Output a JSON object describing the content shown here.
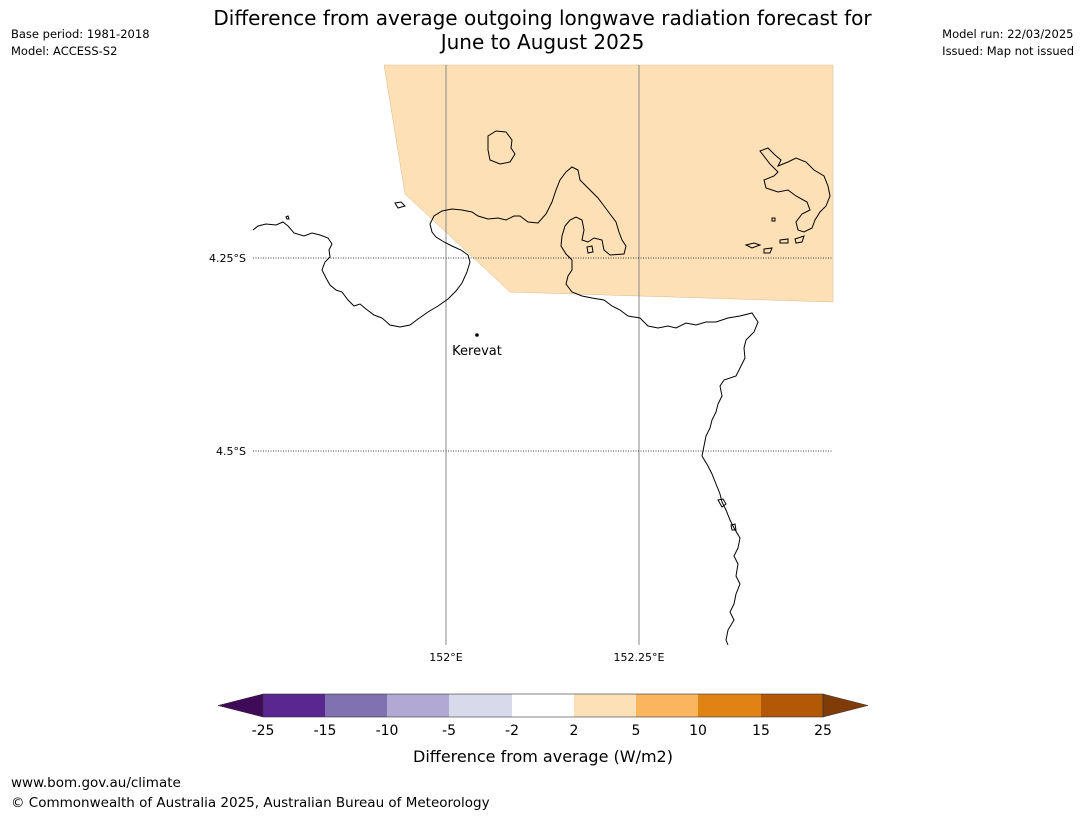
{
  "header": {
    "title_line1": "Difference from average outgoing longwave radiation forecast for",
    "title_line2": "June to August 2025",
    "base_period": "Base period: 1981-2018",
    "model": "Model: ACCESS-S2",
    "model_run": "Model run: 22/03/2025",
    "issued": "Issued: Map not issued"
  },
  "map": {
    "lat_labels": [
      "4.25°S",
      "4.5°S"
    ],
    "lon_labels": [
      "152°E",
      "152.25°E"
    ],
    "place": {
      "name": "Kerevat"
    },
    "shaded_category": "2 to 5",
    "shaded_color": "#fde0b6"
  },
  "legend": {
    "ticks": [
      "-25",
      "-15",
      "-10",
      "-5",
      "-2",
      "2",
      "5",
      "10",
      "15",
      "25"
    ],
    "colors": [
      "#3f0a57",
      "#5a2690",
      "#8072b0",
      "#b1a9d3",
      "#d9d9ec",
      "#ffffff",
      "#fde0b6",
      "#fbb55e",
      "#e08214",
      "#b35806",
      "#7f3b08"
    ],
    "label": "Difference from average (W/m2)"
  },
  "footer": {
    "url": "www.bom.gov.au/climate",
    "copyright": "© Commonwealth of Australia 2025, Australian Bureau of Meteorology"
  }
}
